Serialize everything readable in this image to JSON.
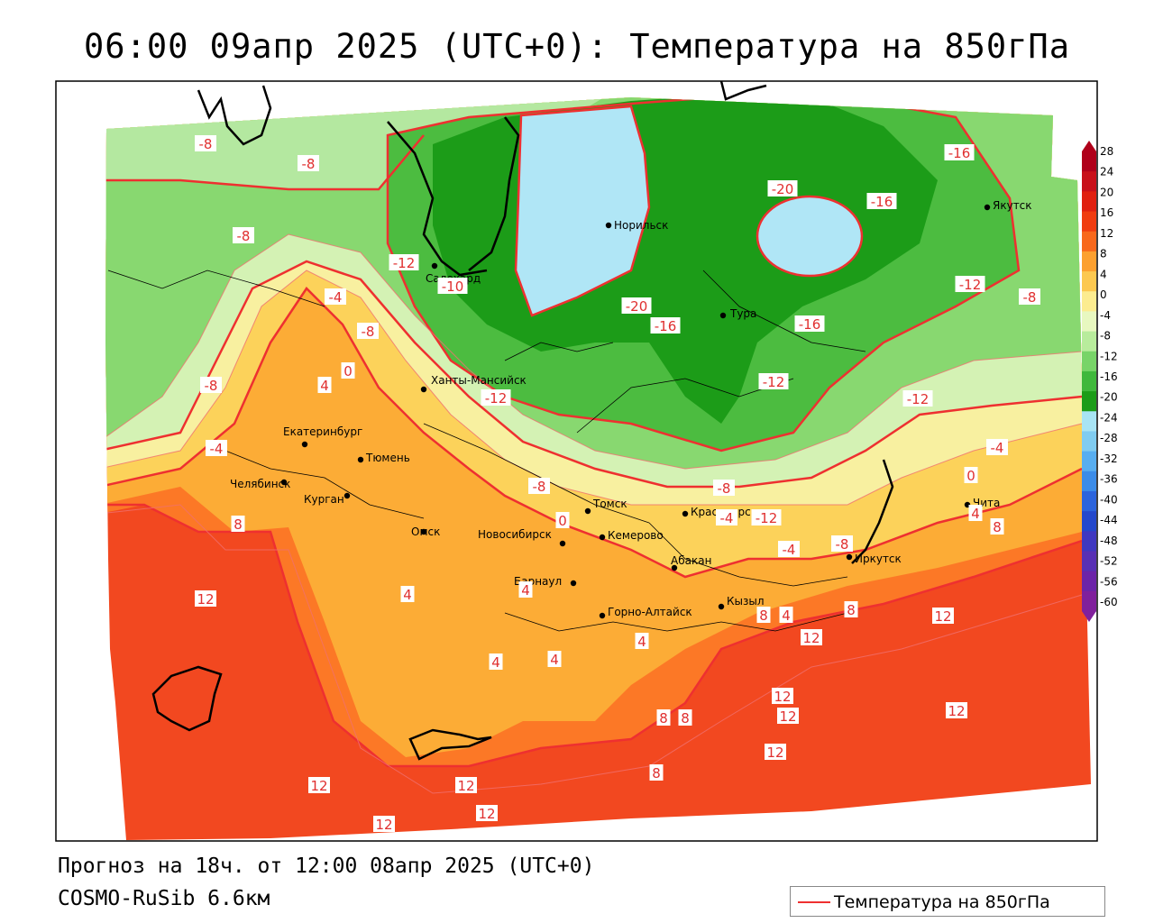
{
  "title": "06:00 09апр 2025 (UTC+0): Температура на 850гПа",
  "forecast_text": "Прогноз на 18ч. от 12:00 08апр 2025 (UTC+0)",
  "model_text": "COSMO-RuSib 6.6км",
  "legend": {
    "label": "Температура на 850гПа",
    "line_color": "#ee3030"
  },
  "colorbar": {
    "labels": [
      "28",
      "24",
      "20",
      "16",
      "12",
      "8",
      "4",
      "0",
      "-4",
      "-8",
      "-12",
      "-16",
      "-20",
      "-24",
      "-28",
      "-32",
      "-36",
      "-40",
      "-44",
      "-48",
      "-52",
      "-56",
      "-60"
    ],
    "colors": [
      "#b0001a",
      "#c8101a",
      "#e02010",
      "#f03c10",
      "#f8681c",
      "#fca030",
      "#fcc850",
      "#fcec90",
      "#e8f8c0",
      "#b8ec9c",
      "#78d468",
      "#40b83c",
      "#1c9c18",
      "#a8e4f4",
      "#80ccf0",
      "#58aef0",
      "#3c8ce8",
      "#2c64dc",
      "#2448cc",
      "#4038c0",
      "#5830b4",
      "#6c24a8",
      "#80209c"
    ]
  },
  "cities": [
    {
      "name": "Норильск"
    },
    {
      "name": "Якутск"
    },
    {
      "name": "Салехард"
    },
    {
      "name": "Тура"
    },
    {
      "name": "Ханты-Мансийск"
    },
    {
      "name": "Екатеринбург"
    },
    {
      "name": "Тюмень"
    },
    {
      "name": "Челябинск"
    },
    {
      "name": "Курган"
    },
    {
      "name": "Омск"
    },
    {
      "name": "Новосибирск"
    },
    {
      "name": "Томск"
    },
    {
      "name": "Кемерово"
    },
    {
      "name": "Красноярск"
    },
    {
      "name": "Абакан"
    },
    {
      "name": "Барнаул"
    },
    {
      "name": "Горно-Алтайск"
    },
    {
      "name": "Кызыл"
    },
    {
      "name": "Иркутск"
    },
    {
      "name": "Чита"
    }
  ],
  "isotherm_labels": [
    "-8",
    "-8",
    "-8",
    "-12",
    "-10",
    "-4",
    "-8",
    "0",
    "4",
    "-8",
    "-4",
    "-12",
    "-20",
    "-16",
    "-20",
    "-16",
    "-16",
    "-12",
    "-12",
    "-8",
    "-16",
    "-12",
    "-8",
    "-8",
    "-4",
    "0",
    "4",
    "8",
    "-4",
    "-12",
    "-8",
    "0",
    "-4",
    "8",
    "12",
    "4",
    "4",
    "4",
    "4",
    "8",
    "4",
    "12",
    "12",
    "8",
    "12",
    "8",
    "8",
    "4",
    "12",
    "12",
    "12",
    "12",
    "8",
    "12",
    "12",
    "12"
  ]
}
